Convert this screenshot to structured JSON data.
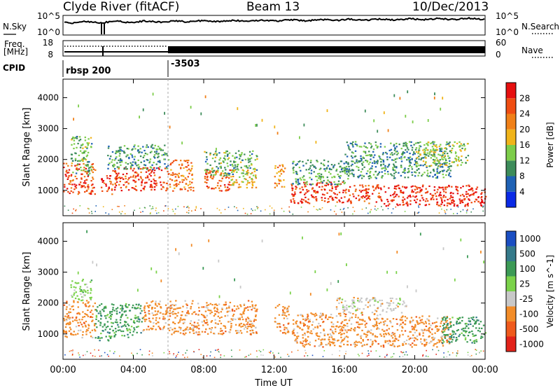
{
  "header": {
    "title": "Clyde River (fitACF)",
    "beam": "Beam 13",
    "date": "10/Dec/2013"
  },
  "strip": {
    "nsky_label": "N.Sky",
    "nsearch_label": "N.Search",
    "noise_ticks": [
      "10^5",
      "10^0"
    ],
    "freq_label": "Freq.",
    "freq_unit": "[MHz]",
    "freq_ticks": [
      "18",
      "8"
    ],
    "nave_label": "Nave",
    "nave_ticks": [
      "60",
      "0"
    ],
    "cpid_label": "CPID",
    "cpid_values": [
      "rbsp 200",
      "-3503"
    ]
  },
  "chart_data": [
    {
      "type": "heatmap",
      "title": "",
      "xlabel": "Time UT",
      "ylabel": "Slant Range [km]",
      "x_ticks": [
        "00:00",
        "04:00",
        "08:00",
        "12:00",
        "16:00",
        "20:00",
        "00:00"
      ],
      "xlim_hours": [
        0,
        24
      ],
      "ylim": [
        180,
        4600
      ],
      "y_ticks": [
        1000,
        2000,
        3000,
        4000
      ],
      "colorbar": {
        "label": "Power [dB]",
        "range": [
          0,
          32
        ],
        "ticks": [
          4,
          8,
          12,
          16,
          20,
          24,
          28
        ],
        "colors": [
          "#0a2ae6",
          "#1f62b5",
          "#3d8c5a",
          "#7dcd4a",
          "#f0b41a",
          "#f08018",
          "#ef4d12",
          "#e60f0f"
        ]
      },
      "echo_regions": [
        {
          "t0": 0.0,
          "t1": 1.8,
          "r0": 900,
          "r1": 1900,
          "level": 26
        },
        {
          "t0": 0.4,
          "t1": 1.6,
          "r0": 1500,
          "r1": 2800,
          "level": 12
        },
        {
          "t0": 2.1,
          "t1": 2.8,
          "r0": 900,
          "r1": 1500,
          "level": 27
        },
        {
          "t0": 2.8,
          "t1": 6.0,
          "r0": 1000,
          "r1": 1750,
          "level": 27
        },
        {
          "t0": 2.5,
          "t1": 6.0,
          "r0": 1700,
          "r1": 2500,
          "level": 10
        },
        {
          "t0": 6.0,
          "t1": 7.4,
          "r0": 1000,
          "r1": 2000,
          "level": 23
        },
        {
          "t0": 8.0,
          "t1": 9.5,
          "r0": 1000,
          "r1": 1700,
          "level": 25
        },
        {
          "t0": 8.0,
          "t1": 11.0,
          "r0": 1500,
          "r1": 2300,
          "level": 12
        },
        {
          "t0": 9.5,
          "t1": 11.0,
          "r0": 1100,
          "r1": 1700,
          "level": 19
        },
        {
          "t0": 12.0,
          "t1": 12.6,
          "r0": 1100,
          "r1": 1900,
          "level": 21
        },
        {
          "t0": 12.9,
          "t1": 16.0,
          "r0": 600,
          "r1": 1300,
          "level": 28
        },
        {
          "t0": 13.0,
          "t1": 16.0,
          "r0": 1200,
          "r1": 2000,
          "level": 11
        },
        {
          "t0": 16.0,
          "t1": 18.0,
          "r0": 600,
          "r1": 1200,
          "level": 27
        },
        {
          "t0": 16.0,
          "t1": 22.0,
          "r0": 1400,
          "r1": 2600,
          "level": 10
        },
        {
          "t0": 18.0,
          "t1": 24.0,
          "r0": 500,
          "r1": 1200,
          "level": 29
        },
        {
          "t0": 20.0,
          "t1": 23.0,
          "r0": 1800,
          "r1": 2600,
          "level": 15
        }
      ]
    },
    {
      "type": "heatmap",
      "title": "",
      "xlabel": "Time UT",
      "ylabel": "Slant Range [km]",
      "x_ticks": [
        "00:00",
        "04:00",
        "08:00",
        "12:00",
        "16:00",
        "20:00",
        "00:00"
      ],
      "xlim_hours": [
        0,
        24
      ],
      "ylim": [
        180,
        4600
      ],
      "y_ticks": [
        1000,
        2000,
        3000,
        4000
      ],
      "colorbar": {
        "label": "Velocity [m s^-1]",
        "labels": [
          "1000",
          "500",
          "100",
          "25",
          "-25",
          "-100",
          "-500",
          "-1000"
        ],
        "colors": [
          "#1a4ec2",
          "#357a8a",
          "#3c9a56",
          "#7bd24a",
          "#c8c8c8",
          "#f28c28",
          "#ef5a1c",
          "#e2231a"
        ]
      },
      "echo_regions": [
        {
          "t0": 0.0,
          "t1": 1.8,
          "r0": 900,
          "r1": 2100,
          "level": "-100"
        },
        {
          "t0": 0.4,
          "t1": 1.6,
          "r0": 2100,
          "r1": 2800,
          "level": "25"
        },
        {
          "t0": 1.8,
          "t1": 2.8,
          "r0": 800,
          "r1": 2000,
          "level": "100"
        },
        {
          "t0": 2.8,
          "t1": 4.5,
          "r0": 900,
          "r1": 2000,
          "level": "100"
        },
        {
          "t0": 4.5,
          "t1": 6.0,
          "r0": 1100,
          "r1": 2100,
          "level": "-100"
        },
        {
          "t0": 6.0,
          "t1": 11.0,
          "r0": 1000,
          "r1": 2100,
          "level": "-100"
        },
        {
          "t0": 12.0,
          "t1": 12.8,
          "r0": 1000,
          "r1": 2000,
          "level": "-100"
        },
        {
          "t0": 13.0,
          "t1": 18.0,
          "r0": 600,
          "r1": 1700,
          "level": "-100"
        },
        {
          "t0": 15.5,
          "t1": 19.5,
          "r0": 1700,
          "r1": 2200,
          "level": "-25"
        },
        {
          "t0": 18.0,
          "t1": 22.0,
          "r0": 600,
          "r1": 1600,
          "level": "-100"
        },
        {
          "t0": 21.5,
          "t1": 24.0,
          "r0": 700,
          "r1": 1600,
          "level": "100"
        }
      ]
    }
  ]
}
